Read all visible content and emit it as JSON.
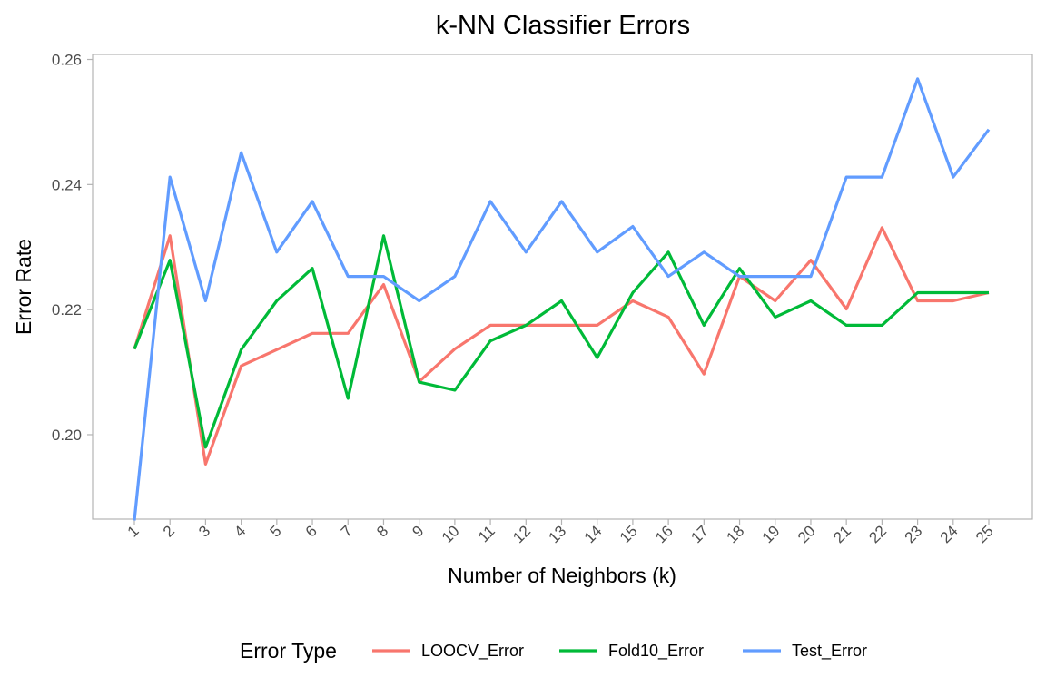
{
  "chart_data": {
    "type": "line",
    "title": "k-NN Classifier Errors",
    "xlabel": "Number of Neighbors (k)",
    "ylabel": "Error Rate",
    "x": [
      1,
      2,
      3,
      4,
      5,
      6,
      7,
      8,
      9,
      10,
      11,
      12,
      13,
      14,
      15,
      16,
      17,
      18,
      19,
      20,
      21,
      22,
      23,
      24,
      25
    ],
    "x_tick_labels": [
      "1",
      "2",
      "3",
      "4",
      "5",
      "6",
      "7",
      "8",
      "9",
      "10",
      "11",
      "12",
      "13",
      "14",
      "15",
      "16",
      "17",
      "18",
      "19",
      "20",
      "21",
      "22",
      "23",
      "24",
      "25"
    ],
    "ylim": [
      0.1865,
      0.2608
    ],
    "y_ticks": [
      0.2,
      0.22,
      0.24,
      0.26
    ],
    "y_tick_labels": [
      "0.20",
      "0.22",
      "0.24",
      "0.26"
    ],
    "grid": false,
    "legend": {
      "title": "Error Type",
      "position": "bottom"
    },
    "series": [
      {
        "name": "LOOCV_Error",
        "color": "#F8766D",
        "values": [
          0.2137,
          0.2318,
          0.1953,
          0.211,
          0.2136,
          0.2162,
          0.2162,
          0.224,
          0.2085,
          0.2137,
          0.2175,
          0.2175,
          0.2175,
          0.2175,
          0.2214,
          0.2188,
          0.2097,
          0.2253,
          0.2214,
          0.2279,
          0.2201,
          0.2331,
          0.2214,
          0.2214,
          0.2227
        ]
      },
      {
        "name": "Fold10_Error",
        "color": "#00BA38",
        "values": [
          0.2137,
          0.2279,
          0.198,
          0.2136,
          0.2214,
          0.2266,
          0.2058,
          0.2318,
          0.2084,
          0.2071,
          0.215,
          0.2175,
          0.2214,
          0.2123,
          0.2227,
          0.2292,
          0.2175,
          0.2266,
          0.2188,
          0.2214,
          0.2175,
          0.2175,
          0.2227,
          0.2227,
          0.2227
        ]
      },
      {
        "name": "Test_Error",
        "color": "#619CFF",
        "values": [
          0.1863,
          0.2412,
          0.2214,
          0.2451,
          0.2292,
          0.2373,
          0.2253,
          0.2253,
          0.2214,
          0.2253,
          0.2373,
          0.2292,
          0.2373,
          0.2292,
          0.2333,
          0.2253,
          0.2292,
          0.2253,
          0.2253,
          0.2253,
          0.2412,
          0.2412,
          0.2569,
          0.2412,
          0.2488
        ]
      }
    ]
  }
}
